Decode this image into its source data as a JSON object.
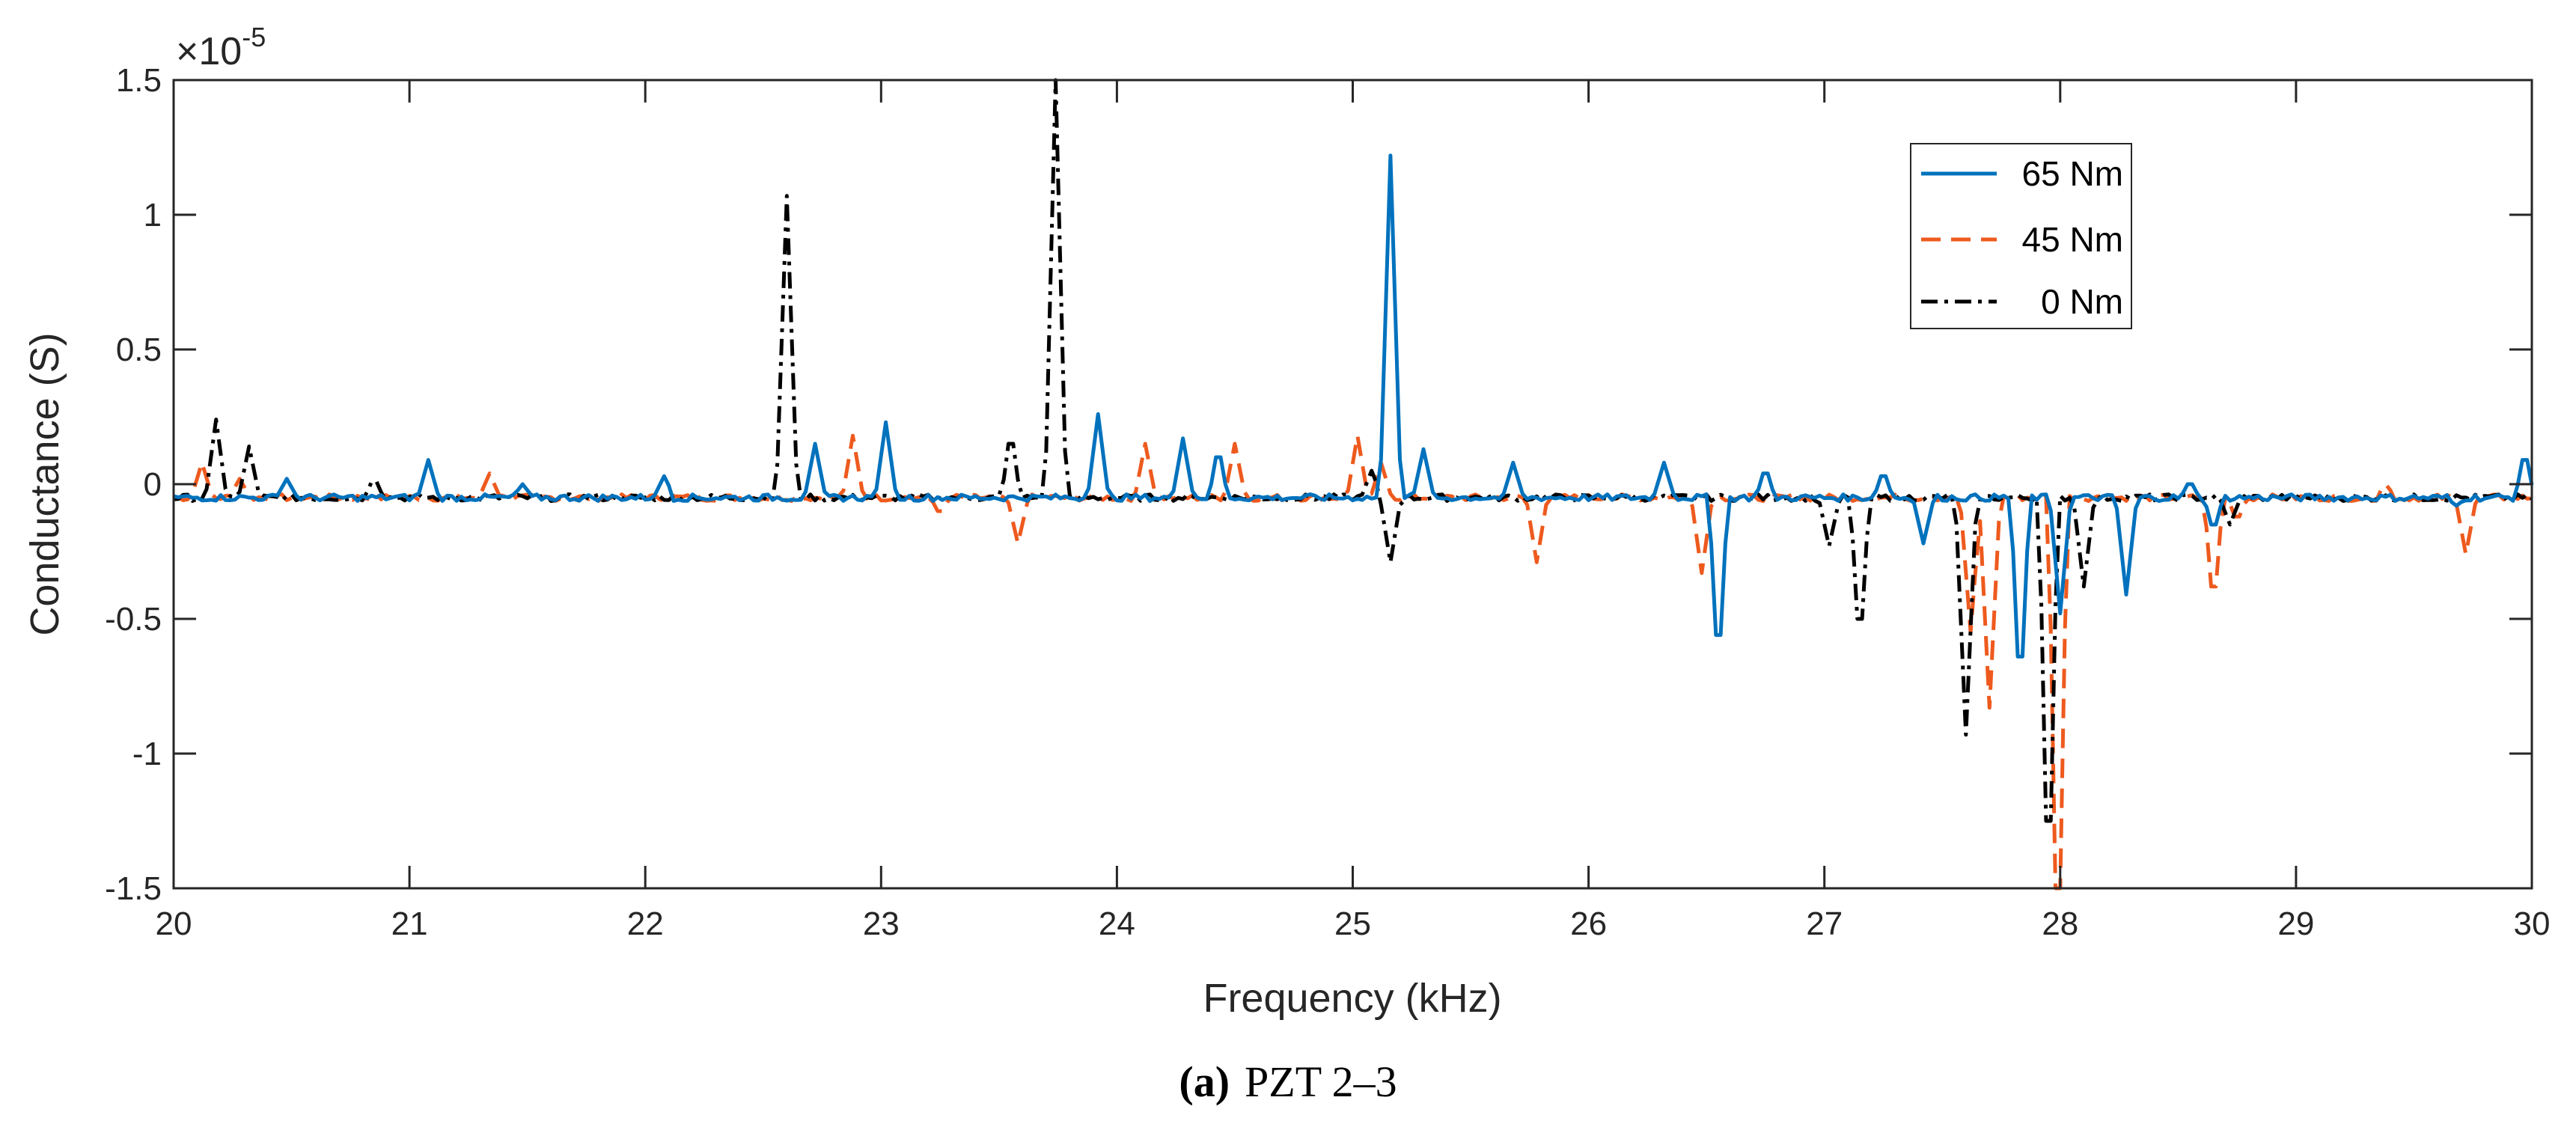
{
  "chart_data": {
    "type": "line",
    "xlabel": "Frequency (kHz)",
    "ylabel": "Conductance (S)",
    "y_multiplier": "×10",
    "y_exponent": "-5",
    "xlim": [
      20,
      30
    ],
    "ylim": [
      -1.5,
      1.5
    ],
    "xticks": [
      20,
      21,
      22,
      23,
      24,
      25,
      26,
      27,
      28,
      29,
      30
    ],
    "yticks": [
      -1.5,
      -1,
      -0.5,
      0,
      0.5,
      1,
      1.5
    ],
    "ytick_labels": [
      "-1.5",
      "-1",
      "-0.5",
      "0",
      "0.5",
      "1",
      "1.5"
    ],
    "legend_position": "top-right",
    "baseline": -0.05,
    "series": [
      {
        "name": "65 Nm",
        "color": "#0072BD",
        "dash": "solid",
        "spikes": [
          [
            20.48,
            0.02
          ],
          [
            21.08,
            0.09
          ],
          [
            21.48,
            0.0
          ],
          [
            22.08,
            0.03
          ],
          [
            22.72,
            0.15
          ],
          [
            23.02,
            0.23
          ],
          [
            23.92,
            0.26
          ],
          [
            24.28,
            0.17
          ],
          [
            24.43,
            0.1
          ],
          [
            25.16,
            1.22
          ],
          [
            25.3,
            0.13
          ],
          [
            25.68,
            0.08
          ],
          [
            26.32,
            0.08
          ],
          [
            26.55,
            -0.56
          ],
          [
            26.75,
            0.04
          ],
          [
            27.25,
            0.03
          ],
          [
            27.42,
            -0.22
          ],
          [
            27.83,
            -0.64
          ],
          [
            28.0,
            -0.48
          ],
          [
            28.28,
            -0.41
          ],
          [
            28.55,
            0.0
          ],
          [
            28.65,
            -0.15
          ],
          [
            29.68,
            -0.08
          ],
          [
            29.97,
            0.09
          ]
        ]
      },
      {
        "name": "45 Nm",
        "color": "#EE5A1E",
        "dash": "dashed",
        "spikes": [
          [
            20.12,
            0.08
          ],
          [
            20.28,
            0.02
          ],
          [
            21.34,
            0.04
          ],
          [
            22.88,
            0.18
          ],
          [
            23.25,
            -0.1
          ],
          [
            23.58,
            -0.22
          ],
          [
            24.12,
            0.15
          ],
          [
            24.5,
            0.15
          ],
          [
            25.02,
            0.18
          ],
          [
            25.12,
            0.08
          ],
          [
            25.78,
            -0.29
          ],
          [
            26.48,
            -0.33
          ],
          [
            27.62,
            -0.55
          ],
          [
            27.7,
            -0.83
          ],
          [
            27.99,
            -1.52
          ],
          [
            28.65,
            -0.38
          ],
          [
            28.75,
            -0.12
          ],
          [
            29.38,
            0.0
          ],
          [
            29.72,
            -0.26
          ]
        ]
      },
      {
        "name": "0 Nm",
        "color": "#000000",
        "dash": "dashdot",
        "spikes": [
          [
            20.18,
            0.24
          ],
          [
            20.32,
            0.14
          ],
          [
            20.85,
            0.01
          ],
          [
            22.6,
            1.07
          ],
          [
            23.55,
            0.15
          ],
          [
            23.74,
            1.5
          ],
          [
            25.08,
            0.05
          ],
          [
            25.16,
            -0.29
          ],
          [
            27.02,
            -0.23
          ],
          [
            27.15,
            -0.5
          ],
          [
            27.6,
            -0.93
          ],
          [
            27.95,
            -1.25
          ],
          [
            28.1,
            -0.38
          ],
          [
            28.72,
            -0.15
          ]
        ]
      }
    ]
  },
  "caption": {
    "label": "(a)",
    "text": "PZT 2–3"
  }
}
